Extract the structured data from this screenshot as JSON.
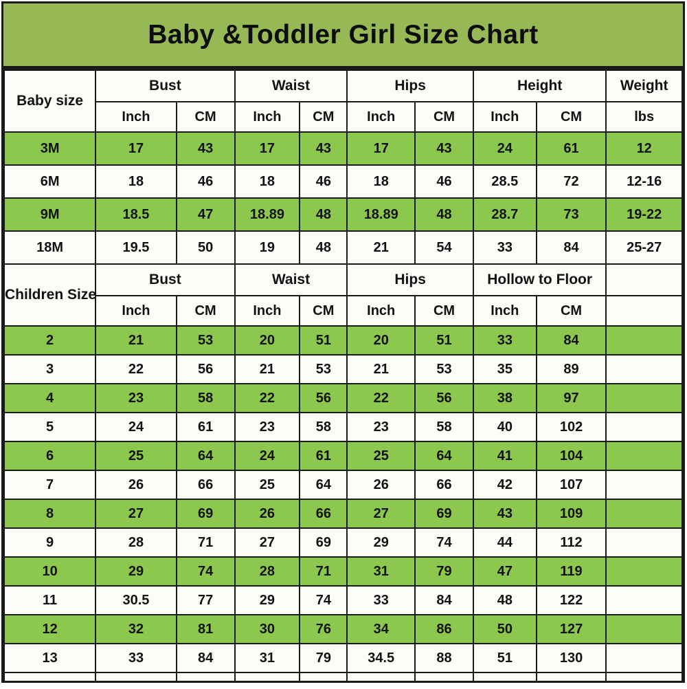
{
  "title": "Baby &Toddler Girl Size Chart",
  "colors": {
    "title_green": "#96b955",
    "row_green": "#8bc84d",
    "cell_white": "#fcfcf9",
    "border": "#1a1a1a",
    "text": "#121212"
  },
  "chart_data": {
    "type": "table",
    "title": "Baby &Toddler Girl Size Chart",
    "baby_section": {
      "corner_label": "Baby size",
      "groups": [
        "Bust",
        "Waist",
        "Hips",
        "Height",
        "Weight"
      ],
      "sub_headers": [
        "Inch",
        "CM",
        "Inch",
        "CM",
        "Inch",
        "CM",
        "Inch",
        "CM",
        "lbs"
      ],
      "rows": [
        {
          "label": "3M",
          "green": true,
          "values": [
            "17",
            "43",
            "17",
            "43",
            "17",
            "43",
            "24",
            "61",
            "12"
          ]
        },
        {
          "label": "6M",
          "green": false,
          "values": [
            "18",
            "46",
            "18",
            "46",
            "18",
            "46",
            "28.5",
            "72",
            "12-16"
          ]
        },
        {
          "label": "9M",
          "green": true,
          "values": [
            "18.5",
            "47",
            "18.89",
            "48",
            "18.89",
            "48",
            "28.7",
            "73",
            "19-22"
          ]
        },
        {
          "label": "18M",
          "green": false,
          "values": [
            "19.5",
            "50",
            "19",
            "48",
            "21",
            "54",
            "33",
            "84",
            "25-27"
          ]
        }
      ]
    },
    "children_section": {
      "corner_label": "Children Size",
      "groups": [
        "Bust",
        "Waist",
        "Hips",
        "Hollow to Floor",
        ""
      ],
      "sub_headers": [
        "Inch",
        "CM",
        "Inch",
        "CM",
        "Inch",
        "CM",
        "Inch",
        "CM",
        ""
      ],
      "rows": [
        {
          "label": "2",
          "green": true,
          "values": [
            "21",
            "53",
            "20",
            "51",
            "20",
            "51",
            "33",
            "84",
            ""
          ]
        },
        {
          "label": "3",
          "green": false,
          "values": [
            "22",
            "56",
            "21",
            "53",
            "21",
            "53",
            "35",
            "89",
            ""
          ]
        },
        {
          "label": "4",
          "green": true,
          "values": [
            "23",
            "58",
            "22",
            "56",
            "22",
            "56",
            "38",
            "97",
            ""
          ]
        },
        {
          "label": "5",
          "green": false,
          "values": [
            "24",
            "61",
            "23",
            "58",
            "23",
            "58",
            "40",
            "102",
            ""
          ]
        },
        {
          "label": "6",
          "green": true,
          "values": [
            "25",
            "64",
            "24",
            "61",
            "25",
            "64",
            "41",
            "104",
            ""
          ]
        },
        {
          "label": "7",
          "green": false,
          "values": [
            "26",
            "66",
            "25",
            "64",
            "26",
            "66",
            "42",
            "107",
            ""
          ]
        },
        {
          "label": "8",
          "green": true,
          "values": [
            "27",
            "69",
            "26",
            "66",
            "27",
            "69",
            "43",
            "109",
            ""
          ]
        },
        {
          "label": "9",
          "green": false,
          "values": [
            "28",
            "71",
            "27",
            "69",
            "29",
            "74",
            "44",
            "112",
            ""
          ]
        },
        {
          "label": "10",
          "green": true,
          "values": [
            "29",
            "74",
            "28",
            "71",
            "31",
            "79",
            "47",
            "119",
            ""
          ]
        },
        {
          "label": "11",
          "green": false,
          "values": [
            "30.5",
            "77",
            "29",
            "74",
            "33",
            "84",
            "48",
            "122",
            ""
          ]
        },
        {
          "label": "12",
          "green": true,
          "values": [
            "32",
            "81",
            "30",
            "76",
            "34",
            "86",
            "50",
            "127",
            ""
          ]
        },
        {
          "label": "13",
          "green": false,
          "values": [
            "33",
            "84",
            "31",
            "79",
            "34.5",
            "88",
            "51",
            "130",
            ""
          ]
        }
      ]
    }
  }
}
